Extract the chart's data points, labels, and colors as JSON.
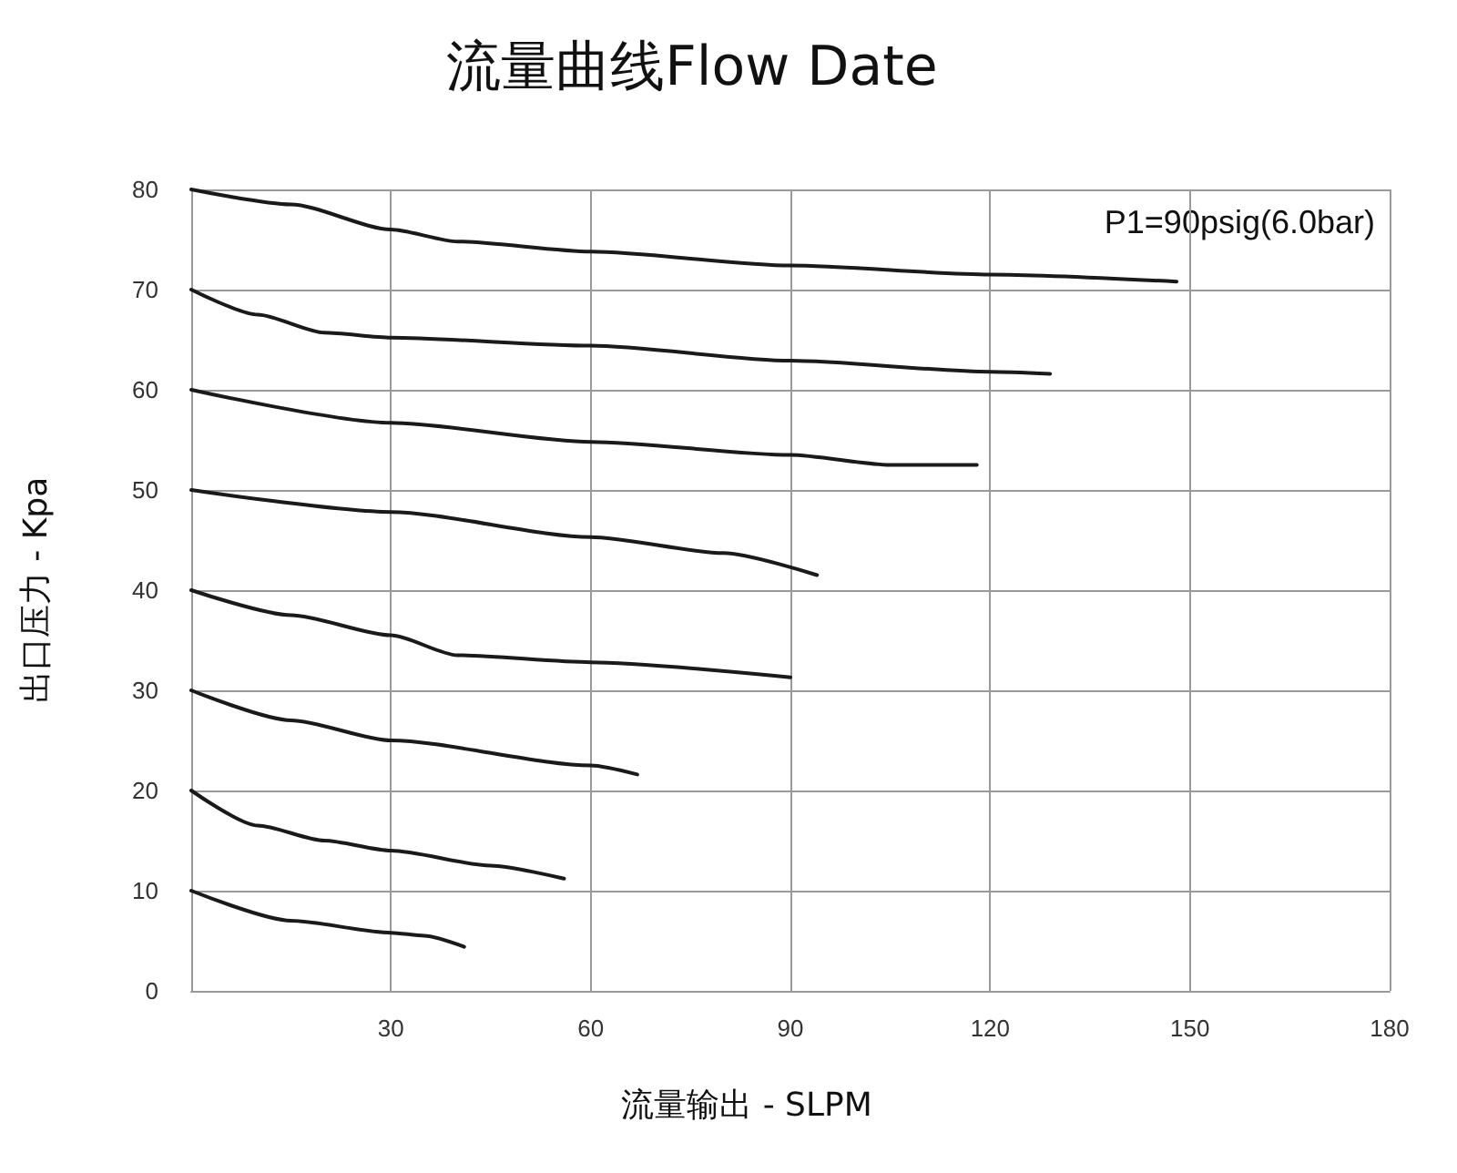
{
  "chart_data": {
    "type": "line",
    "title": "流量曲线Flow Date",
    "xlabel": "流量输出 - SLPM",
    "ylabel": "出口压力 - Kpa",
    "annotations": [
      "P1=90psig(6.0bar)"
    ],
    "xlim": [
      0,
      180
    ],
    "xticks": [
      {
        "value": 0,
        "label": null
      },
      30,
      60,
      90,
      120,
      150,
      180
    ],
    "ylim": [
      0,
      80
    ],
    "yticks": [
      0,
      10,
      20,
      30,
      40,
      50,
      60,
      70,
      80
    ],
    "grid": true,
    "marker": "none",
    "line_style": "solid",
    "series": [
      {
        "color": "#1a1a1a",
        "x": [
          0,
          15,
          30,
          40,
          60,
          90,
          120,
          148
        ],
        "values": [
          80,
          78.5,
          76,
          74.8,
          73.8,
          72.4,
          71.5,
          70.8
        ]
      },
      {
        "color": "#1a1a1a",
        "x": [
          0,
          10,
          20,
          30,
          60,
          90,
          120,
          129
        ],
        "values": [
          70,
          67.5,
          65.7,
          65.2,
          64.4,
          62.9,
          61.8,
          61.6
        ]
      },
      {
        "color": "#1a1a1a",
        "x": [
          0,
          30,
          60,
          90,
          105,
          118
        ],
        "values": [
          60,
          56.7,
          54.8,
          53.5,
          52.5,
          52.5
        ]
      },
      {
        "color": "#1a1a1a",
        "x": [
          0,
          30,
          60,
          80,
          94
        ],
        "values": [
          50,
          47.8,
          45.3,
          43.7,
          41.5
        ]
      },
      {
        "color": "#1a1a1a",
        "x": [
          0,
          15,
          30,
          40,
          60,
          90
        ],
        "values": [
          40,
          37.5,
          35.5,
          33.5,
          32.8,
          31.3
        ]
      },
      {
        "color": "#1a1a1a",
        "x": [
          0,
          15,
          30,
          60,
          67
        ],
        "values": [
          30,
          27,
          25,
          22.5,
          21.6
        ]
      },
      {
        "color": "#1a1a1a",
        "x": [
          0,
          10,
          20,
          30,
          45,
          56
        ],
        "values": [
          20,
          16.5,
          15,
          14,
          12.5,
          11.2
        ]
      },
      {
        "color": "#1a1a1a",
        "x": [
          0,
          15,
          30,
          35,
          41
        ],
        "values": [
          10,
          7,
          5.8,
          5.5,
          4.4
        ]
      }
    ]
  }
}
